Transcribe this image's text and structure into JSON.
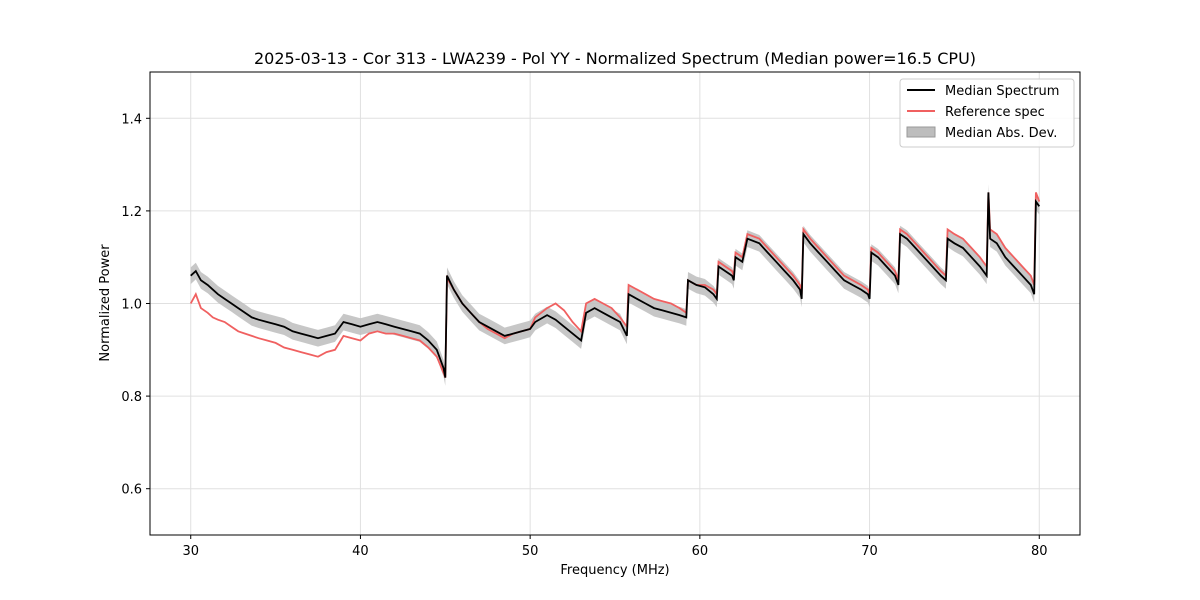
{
  "colors": {
    "median": "#000000",
    "reference": "#f06060",
    "mad_fill": "#bdbdbd",
    "overlap": "#8b0000"
  },
  "chart_data": {
    "type": "line",
    "title": "2025-03-13 - Cor 313 - LWA239 - Pol YY - Normalized Spectrum (Median power=16.5 CPU)",
    "xlabel": "Frequency (MHz)",
    "ylabel": "Normalized Power",
    "xlim": [
      27.6,
      82.4
    ],
    "ylim": [
      0.5,
      1.5
    ],
    "xticks": [
      30,
      40,
      50,
      60,
      70,
      80
    ],
    "yticks": [
      0.6,
      0.8,
      1.0,
      1.2,
      1.4
    ],
    "grid": true,
    "legend_position": "top-right",
    "series": [
      {
        "name": "Median Spectrum",
        "x": [
          30.0,
          30.3,
          30.6,
          31.0,
          31.3,
          31.6,
          32.0,
          32.4,
          32.8,
          33.2,
          33.6,
          34.0,
          34.5,
          35.0,
          35.5,
          36.0,
          36.5,
          37.0,
          37.5,
          38.0,
          38.5,
          39.0,
          39.5,
          40.0,
          40.5,
          41.0,
          41.5,
          42.0,
          42.5,
          43.0,
          43.5,
          44.0,
          44.5,
          44.9,
          45.0,
          45.1,
          45.5,
          46.0,
          46.5,
          47.0,
          47.5,
          48.0,
          48.5,
          49.0,
          49.5,
          50.0,
          50.3,
          51.0,
          51.5,
          52.0,
          52.5,
          53.0,
          53.3,
          53.8,
          54.3,
          54.8,
          55.3,
          55.7,
          55.8,
          56.3,
          56.8,
          57.3,
          57.8,
          58.3,
          58.8,
          59.2,
          59.3,
          59.8,
          60.3,
          60.8,
          61.0,
          61.1,
          61.5,
          61.9,
          62.0,
          62.1,
          62.5,
          62.8,
          63.5,
          64.0,
          64.5,
          65.0,
          65.5,
          65.9,
          66.0,
          66.1,
          66.5,
          67.0,
          67.5,
          68.0,
          68.5,
          69.0,
          69.5,
          69.9,
          70.0,
          70.1,
          70.5,
          71.0,
          71.5,
          71.7,
          71.8,
          72.2,
          72.7,
          73.2,
          73.7,
          74.2,
          74.5,
          74.6,
          75.0,
          75.5,
          76.0,
          76.5,
          76.9,
          77.0,
          77.1,
          77.5,
          78.0,
          78.5,
          79.0,
          79.5,
          79.7,
          79.8,
          80.0
        ],
        "values": [
          1.06,
          1.07,
          1.05,
          1.04,
          1.03,
          1.02,
          1.01,
          1.0,
          0.99,
          0.98,
          0.97,
          0.965,
          0.96,
          0.955,
          0.95,
          0.94,
          0.935,
          0.93,
          0.925,
          0.93,
          0.935,
          0.96,
          0.955,
          0.95,
          0.955,
          0.96,
          0.955,
          0.95,
          0.945,
          0.94,
          0.935,
          0.92,
          0.9,
          0.86,
          0.84,
          1.06,
          1.03,
          1.0,
          0.98,
          0.96,
          0.95,
          0.94,
          0.93,
          0.935,
          0.94,
          0.945,
          0.96,
          0.975,
          0.965,
          0.95,
          0.935,
          0.92,
          0.98,
          0.99,
          0.98,
          0.97,
          0.96,
          0.93,
          1.02,
          1.01,
          1.0,
          0.99,
          0.985,
          0.98,
          0.975,
          0.97,
          1.05,
          1.04,
          1.035,
          1.02,
          1.01,
          1.08,
          1.07,
          1.06,
          1.05,
          1.1,
          1.09,
          1.14,
          1.13,
          1.11,
          1.09,
          1.07,
          1.05,
          1.03,
          1.01,
          1.15,
          1.13,
          1.11,
          1.09,
          1.07,
          1.05,
          1.04,
          1.03,
          1.02,
          1.01,
          1.11,
          1.1,
          1.08,
          1.06,
          1.04,
          1.15,
          1.14,
          1.12,
          1.1,
          1.08,
          1.06,
          1.05,
          1.14,
          1.13,
          1.12,
          1.1,
          1.08,
          1.06,
          1.24,
          1.14,
          1.13,
          1.1,
          1.08,
          1.06,
          1.04,
          1.02,
          1.22,
          1.21
        ]
      },
      {
        "name": "Reference spec",
        "x": [
          30.0,
          30.3,
          30.6,
          31.0,
          31.3,
          31.6,
          32.0,
          32.4,
          32.8,
          33.2,
          33.6,
          34.0,
          34.5,
          35.0,
          35.5,
          36.0,
          36.5,
          37.0,
          37.5,
          38.0,
          38.5,
          39.0,
          39.5,
          40.0,
          40.5,
          41.0,
          41.5,
          42.0,
          42.5,
          43.0,
          43.5,
          44.0,
          44.5,
          44.9,
          45.0,
          45.1,
          45.5,
          46.0,
          46.5,
          47.0,
          47.5,
          48.0,
          48.5,
          49.0,
          49.5,
          50.0,
          50.3,
          51.0,
          51.5,
          52.0,
          52.5,
          53.0,
          53.3,
          53.8,
          54.3,
          54.8,
          55.3,
          55.7,
          55.8,
          56.3,
          56.8,
          57.3,
          57.8,
          58.3,
          58.8,
          59.2,
          59.3,
          59.8,
          60.3,
          60.8,
          61.0,
          61.1,
          61.5,
          61.9,
          62.0,
          62.1,
          62.5,
          62.8,
          63.5,
          64.0,
          64.5,
          65.0,
          65.5,
          65.9,
          66.0,
          66.1,
          66.5,
          67.0,
          67.5,
          68.0,
          68.5,
          69.0,
          69.5,
          69.9,
          70.0,
          70.1,
          70.5,
          71.0,
          71.5,
          71.7,
          71.8,
          72.2,
          72.7,
          73.2,
          73.7,
          74.2,
          74.5,
          74.6,
          75.0,
          75.5,
          76.0,
          76.5,
          76.9,
          77.0,
          77.1,
          77.5,
          78.0,
          78.5,
          79.0,
          79.5,
          79.7,
          79.8,
          80.0
        ],
        "values": [
          1.0,
          1.02,
          0.99,
          0.98,
          0.97,
          0.965,
          0.96,
          0.95,
          0.94,
          0.935,
          0.93,
          0.925,
          0.92,
          0.915,
          0.905,
          0.9,
          0.895,
          0.89,
          0.885,
          0.895,
          0.9,
          0.93,
          0.925,
          0.92,
          0.935,
          0.94,
          0.935,
          0.935,
          0.93,
          0.925,
          0.92,
          0.905,
          0.885,
          0.85,
          0.84,
          1.055,
          1.03,
          1.0,
          0.98,
          0.96,
          0.945,
          0.935,
          0.925,
          0.935,
          0.94,
          0.945,
          0.97,
          0.99,
          1.0,
          0.985,
          0.96,
          0.94,
          1.0,
          1.01,
          1.0,
          0.99,
          0.97,
          0.95,
          1.04,
          1.03,
          1.02,
          1.01,
          1.005,
          1.0,
          0.99,
          0.98,
          1.05,
          1.04,
          1.04,
          1.03,
          1.02,
          1.09,
          1.08,
          1.07,
          1.06,
          1.11,
          1.1,
          1.15,
          1.14,
          1.12,
          1.1,
          1.08,
          1.06,
          1.04,
          1.02,
          1.16,
          1.14,
          1.12,
          1.1,
          1.08,
          1.06,
          1.05,
          1.04,
          1.03,
          1.02,
          1.12,
          1.11,
          1.09,
          1.07,
          1.05,
          1.16,
          1.15,
          1.13,
          1.11,
          1.09,
          1.07,
          1.06,
          1.16,
          1.15,
          1.14,
          1.12,
          1.1,
          1.08,
          1.24,
          1.16,
          1.15,
          1.12,
          1.1,
          1.08,
          1.06,
          1.04,
          1.24,
          1.22
        ]
      },
      {
        "name": "Median Abs. Dev.",
        "type": "band",
        "half_width": 0.018
      }
    ]
  }
}
